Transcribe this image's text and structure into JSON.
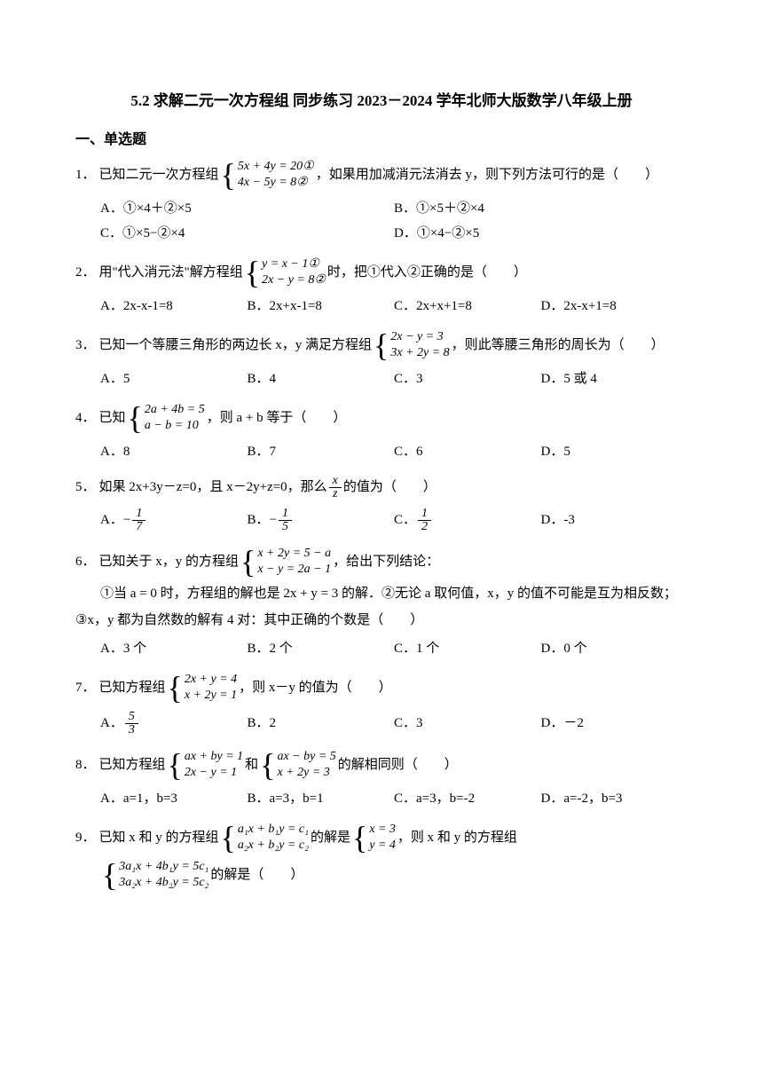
{
  "title": "5.2 求解二元一次方程组 同步练习 2023－2024 学年北师大版数学八年级上册",
  "section": "一、单选题",
  "q1": {
    "num": "1．",
    "pre": "已知二元一次方程组 ",
    "eq1": "5x + 4y = 20①",
    "eq2": "4x − 5y = 8②",
    "post": " ，如果用加减消元法消去 y，则下列方法可行的是（　　）",
    "A": "A．①×4＋②×5",
    "B": "B．①×5＋②×4",
    "C": "C．①×5−②×4",
    "D": "D．①×4−②×5"
  },
  "q2": {
    "num": "2．",
    "pre": "用\"代入消元法\"解方程组 ",
    "eq1": "y = x − 1①",
    "eq2": "2x − y = 8②",
    "post": " 时，把①代入②正确的是（　　）",
    "A": "A．2x-x-1=8",
    "B": "B．2x+x-1=8",
    "C": "C．2x+x+1=8",
    "D": "D．2x-x+1=8"
  },
  "q3": {
    "num": "3．",
    "pre": "已知一个等腰三角形的两边长 x，y 满足方程组 ",
    "eq1": "2x − y = 3",
    "eq2": "3x + 2y = 8",
    "post": " ，则此等腰三角形的周长为（　　）",
    "A": "A．5",
    "B": "B．4",
    "C": "C．3",
    "D": "D．5 或 4"
  },
  "q4": {
    "num": "4．",
    "pre": "已知",
    "eq1": "2a + 4b = 5",
    "eq2": "a − b = 10",
    "post": "，则 a + b 等于（　　）",
    "A": "A．8",
    "B": "B．7",
    "C": "C．6",
    "D": "D．5"
  },
  "q5": {
    "num": "5．",
    "stem_pre": "如果 2x+3y－z=0，且 x－2y+z=0，那么 ",
    "frac_n": "x",
    "frac_d": "z",
    "stem_post": " 的值为（　　）",
    "A_pre": "A．",
    "A_n": "1",
    "A_d": "7",
    "A_neg": "−",
    "B_pre": "B．",
    "B_n": "1",
    "B_d": "5",
    "B_neg": "−",
    "C_pre": "C．",
    "C_n": "1",
    "C_d": "2",
    "D": "D．-3"
  },
  "q6": {
    "num": "6．",
    "pre": "已知关于 x，y 的方程组",
    "eq1": "x + 2y = 5 − a",
    "eq2": "x − y = 2a − 1",
    "post": "，给出下列结论：",
    "line2": "①当 a = 0 时，方程组的解也是 2x + y = 3 的解．②无论 a 取何值，x，y 的值不可能是互为相反数；",
    "line3": "③x，y 都为自然数的解有 4 对：其中正确的个数是（　　）",
    "A": "A．3 个",
    "B": "B．2 个",
    "C": "C．1 个",
    "D": "D．0 个"
  },
  "q7": {
    "num": "7．",
    "pre": "已知方程组",
    "eq1": "2x + y = 4",
    "eq2": "x + 2y = 1",
    "post": "，则 x－y 的值为（　　）",
    "A_pre": "A．",
    "A_n": "5",
    "A_d": "3",
    "B": "B．2",
    "C": "C．3",
    "D": "D．－2"
  },
  "q8": {
    "num": "8．",
    "pre": "已知方程组 ",
    "eq1a": "ax + by = 1",
    "eq2a": "2x − y = 1",
    "mid": " 和 ",
    "eq1b": "ax − by = 5",
    "eq2b": "x + 2y = 3",
    "post": " 的解相同则（　　）",
    "A": "A．a=1，b=3",
    "B": "B．a=3，b=1",
    "C": "C．a=3，b=-2",
    "D": "D．a=-2，b=3"
  },
  "q9": {
    "num": "9．",
    "pre": "已知 x 和 y 的方程组 ",
    "eq1a": "a₁x + b₁y = c₁",
    "eq2a": "a₂x + b₂y = c₂",
    "mid": " 的解是 ",
    "eq1b": "x = 3",
    "eq2b": "y = 4",
    "post": " ，则 x 和 y 的方程组",
    "eq1c": "3a₁x + 4b₁y = 5c₁",
    "eq2c": "3a₂x + 4b₂y = 5c₂",
    "post2": " 的解是（　　）"
  }
}
